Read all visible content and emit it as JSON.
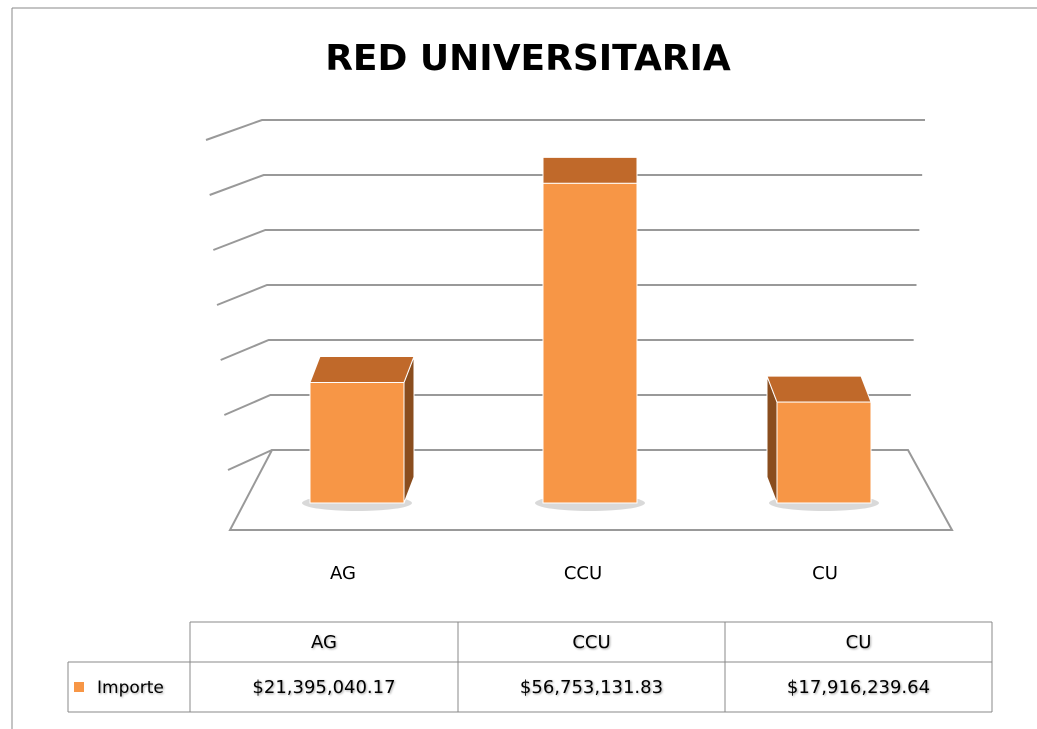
{
  "chart_data": {
    "type": "bar",
    "title": "RED UNIVERSITARIA",
    "categories": [
      "AG",
      "CCU",
      "CU"
    ],
    "series": [
      {
        "name": "Importe",
        "color": "#f79646",
        "values": [
          21395040.17,
          56753131.83,
          17916239.64
        ],
        "value_labels": [
          "$21,395,040.17",
          "$56,753,131.83",
          "$17,916,239.64"
        ]
      }
    ],
    "ylim": [
      0,
      60000000
    ],
    "yticks": [
      0,
      10000000,
      20000000,
      30000000,
      40000000,
      50000000,
      60000000
    ],
    "grid": true
  }
}
